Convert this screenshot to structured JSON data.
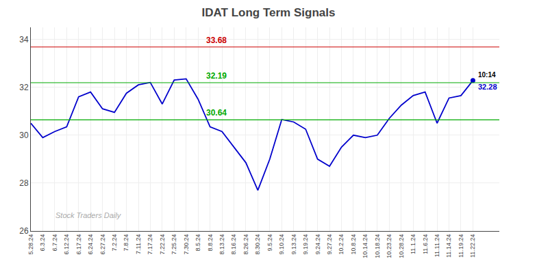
{
  "chart_data": {
    "type": "line",
    "title": "IDAT Long Term Signals",
    "categories": [
      "5.28.24",
      "6.3.24",
      "6.7.24",
      "6.12.24",
      "6.17.24",
      "6.24.24",
      "6.27.24",
      "7.2.24",
      "7.8.24",
      "7.11.24",
      "7.17.24",
      "7.22.24",
      "7.25.24",
      "7.30.24",
      "8.5.24",
      "8.8.24",
      "8.13.24",
      "8.16.24",
      "8.26.24",
      "8.30.24",
      "9.5.24",
      "9.10.24",
      "9.13.24",
      "9.19.24",
      "9.24.24",
      "9.27.24",
      "10.2.24",
      "10.8.24",
      "10.14.24",
      "10.18.24",
      "10.23.24",
      "10.28.24",
      "11.1.24",
      "11.6.24",
      "11.11.24",
      "11.14.24",
      "11.19.24",
      "11.22.24"
    ],
    "values": [
      30.5,
      29.9,
      30.15,
      30.35,
      31.6,
      31.8,
      31.1,
      30.95,
      31.75,
      32.1,
      32.2,
      31.3,
      32.3,
      32.35,
      31.5,
      30.35,
      30.15,
      29.5,
      28.85,
      27.7,
      29.0,
      30.65,
      30.55,
      30.25,
      29.0,
      28.7,
      29.5,
      30.0,
      29.9,
      30.0,
      30.7,
      31.25,
      31.65,
      31.8,
      30.5,
      31.55,
      31.65,
      32.28
    ],
    "value_labels": [
      null,
      null,
      null,
      null,
      null,
      null,
      null,
      null,
      null,
      null,
      null,
      null,
      null,
      null,
      null,
      null,
      null,
      null,
      null,
      null,
      null,
      null,
      null,
      null,
      null,
      null,
      null,
      null,
      null,
      null,
      null,
      null,
      null,
      null,
      null,
      null,
      null,
      "32.28"
    ],
    "color": "#0000cc",
    "reference_lines": [
      {
        "value": 33.68,
        "label": "33.68",
        "color": "#cc0000"
      },
      {
        "value": 32.19,
        "label": "32.19",
        "color": "#00aa00"
      },
      {
        "value": 30.64,
        "label": "30.64",
        "color": "#00aa00"
      }
    ],
    "annotations": [
      {
        "text": "10:14",
        "category": "11.22.24"
      },
      {
        "text": "Stock Traders Daily",
        "color": "#aaaaaa"
      }
    ],
    "ylim": [
      26,
      34.5
    ],
    "yticks": [
      26,
      28,
      30,
      32,
      34
    ],
    "grid": true
  }
}
